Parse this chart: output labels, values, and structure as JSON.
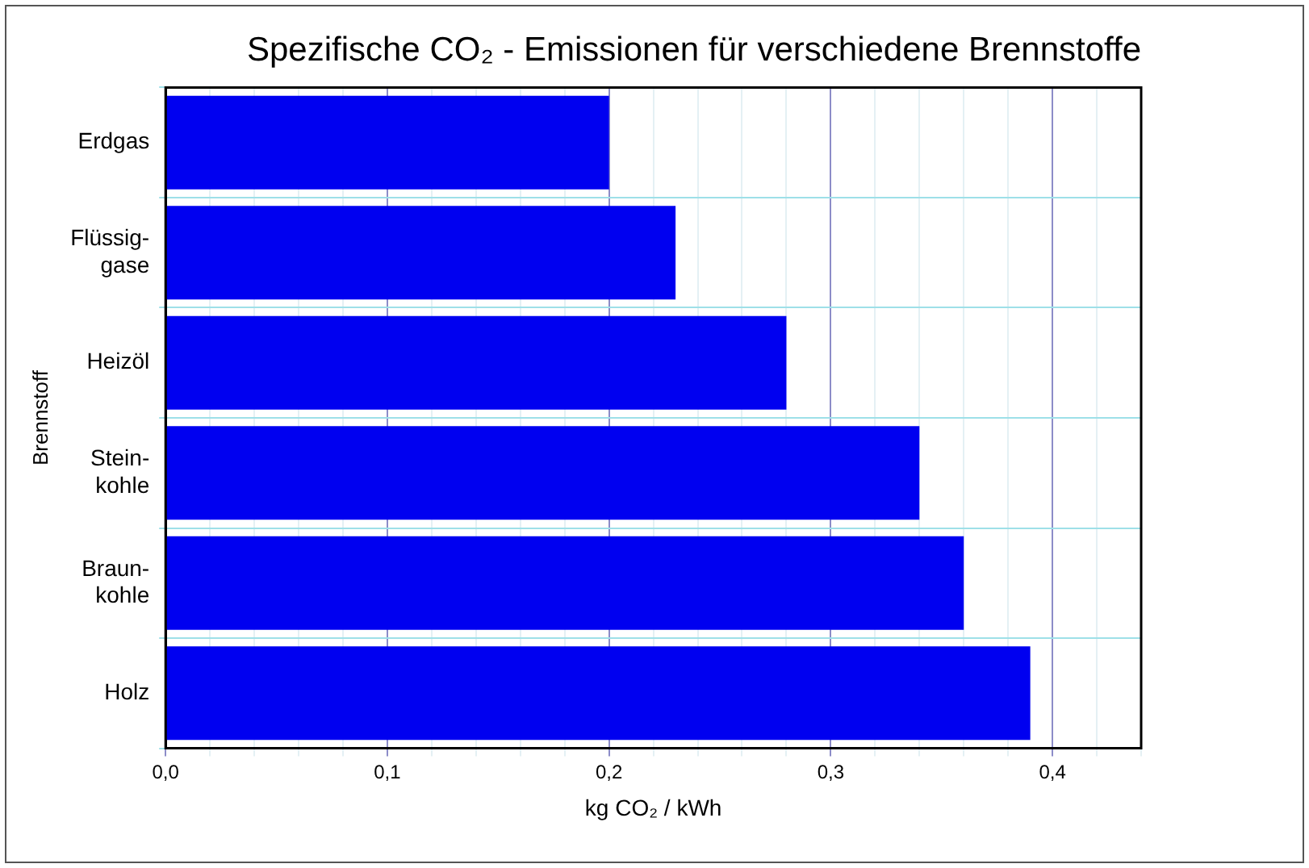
{
  "chart_data": {
    "type": "bar",
    "orientation": "horizontal",
    "title": "Spezifische CO₂ - Emissionen für verschiedene Brennstoffe",
    "xlabel": "kg CO₂ / kWh",
    "ylabel": "Brennstoff",
    "categories": [
      "Erdgas",
      "Flüssig-\ngase",
      "Heizöl",
      "Stein-\nkohle",
      "Braun-\nkohle",
      "Holz"
    ],
    "values": [
      0.2,
      0.23,
      0.28,
      0.34,
      0.36,
      0.39
    ],
    "color": "#0000f0",
    "xlim": [
      0,
      0.44
    ],
    "xticks": [
      {
        "value": 0,
        "label": "0,0"
      },
      {
        "value": 0.02,
        "label": null
      },
      {
        "value": 0.04,
        "label": null
      },
      {
        "value": 0.06,
        "label": null
      },
      {
        "value": 0.08,
        "label": null
      },
      {
        "value": 0.1,
        "label": "0,1"
      },
      {
        "value": 0.12,
        "label": null
      },
      {
        "value": 0.14,
        "label": null
      },
      {
        "value": 0.16,
        "label": null
      },
      {
        "value": 0.18,
        "label": null
      },
      {
        "value": 0.2,
        "label": "0,2"
      },
      {
        "value": 0.22,
        "label": null
      },
      {
        "value": 0.24,
        "label": null
      },
      {
        "value": 0.26,
        "label": null
      },
      {
        "value": 0.28,
        "label": null
      },
      {
        "value": 0.3,
        "label": "0,3"
      },
      {
        "value": 0.32,
        "label": null
      },
      {
        "value": 0.34,
        "label": null
      },
      {
        "value": 0.36,
        "label": null
      },
      {
        "value": 0.38,
        "label": null
      },
      {
        "value": 0.4,
        "label": "0,4"
      },
      {
        "value": 0.42,
        "label": null
      },
      {
        "value": 0.44,
        "label": null
      }
    ],
    "grid": true,
    "legend": false
  }
}
